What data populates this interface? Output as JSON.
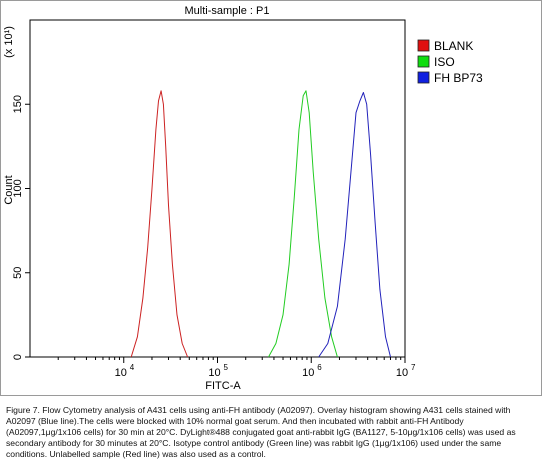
{
  "chart_data": {
    "type": "line",
    "title": "Multi-sample : P1",
    "xlabel": "FITC-A",
    "ylabel": "Count",
    "y_multiplier": "(x 10¹)",
    "x_scale": "log",
    "xlim": [
      1000,
      10000000
    ],
    "ylim": [
      0,
      200
    ],
    "x_ticks": [
      {
        "value": 10000,
        "label": "10",
        "sup": "4"
      },
      {
        "value": 100000,
        "label": "10",
        "sup": "5"
      },
      {
        "value": 1000000,
        "label": "10",
        "sup": "6"
      },
      {
        "value": 10000000,
        "label": "10",
        "sup": "7"
      }
    ],
    "y_ticks": [
      0,
      50,
      100,
      150
    ],
    "legend_position": "top-right",
    "series": [
      {
        "name": "BLANK",
        "color": "#cc2222",
        "swatch": "#e01010",
        "x": [
          12000,
          14000,
          16000,
          18000,
          20000,
          22000,
          23500,
          25000,
          26500,
          28000,
          30000,
          33000,
          37000,
          42000,
          48000
        ],
        "y": [
          0,
          12,
          35,
          65,
          100,
          135,
          152,
          158,
          150,
          125,
          90,
          55,
          25,
          8,
          0
        ]
      },
      {
        "name": "ISO",
        "color": "#22cc22",
        "swatch": "#10dd10",
        "x": [
          350000,
          420000,
          500000,
          580000,
          660000,
          740000,
          820000,
          880000,
          950000,
          1050000,
          1200000,
          1400000,
          1650000,
          1900000
        ],
        "y": [
          0,
          8,
          25,
          55,
          95,
          135,
          155,
          158,
          145,
          110,
          70,
          35,
          12,
          0
        ]
      },
      {
        "name": "FH BP73",
        "color": "#2222bb",
        "swatch": "#1020e0",
        "x": [
          1200000,
          1500000,
          1900000,
          2300000,
          2700000,
          3000000,
          3300000,
          3600000,
          3900000,
          4300000,
          4800000,
          5400000,
          6200000,
          7000000
        ],
        "y": [
          0,
          8,
          30,
          70,
          115,
          145,
          152,
          157,
          150,
          120,
          80,
          40,
          12,
          0
        ]
      }
    ]
  },
  "caption": "Figure 7. Flow Cytometry analysis of A431 cells using anti-FH antibody (A02097).  Overlay histogram showing A431 cells stained with A02097 (Blue line).The cells were blocked with 10% normal goat serum. And then incubated with rabbit anti-FH Antibody (A02097,1μg/1x106 cells) for 30 min at 20°C. DyLight®488 conjugated goat anti-rabbit IgG (BA1127, 5-10μg/1x106 cells) was used as secondary antibody for 30 minutes at 20°C. Isotype control antibody (Green line) was rabbit IgG (1μg/1x106) used under the same conditions. Unlabelled sample (Red line) was also used as a control."
}
